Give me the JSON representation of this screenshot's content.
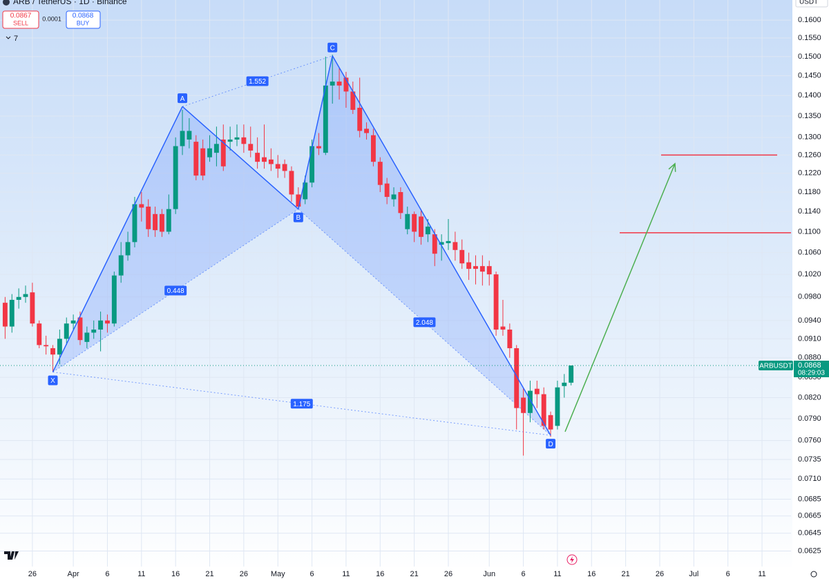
{
  "header": {
    "symbol": "ARB / TetherUS · 1D · Binance",
    "sell_price": "0.0867",
    "sell": "SELL",
    "spread": "0.0001",
    "buy_price": "0.0868",
    "buy": "BUY",
    "indicators": "7",
    "currency": "USDT"
  },
  "chart_data": {
    "type": "candlestick",
    "title": "ARB / TetherUS · 1D · Binance",
    "categories": [
      null,
      null,
      null,
      null,
      "26",
      null,
      null,
      null,
      null,
      null,
      "Apr",
      null,
      null,
      null,
      null,
      "6",
      null,
      null,
      null,
      null,
      "11",
      null,
      null,
      null,
      null,
      "16",
      null,
      null,
      null,
      null,
      "21",
      null,
      null,
      null,
      null,
      "26",
      null,
      null,
      null,
      null,
      "May",
      null,
      null,
      null,
      null,
      "6",
      null,
      null,
      null,
      null,
      "11",
      null,
      null,
      null,
      null,
      "16",
      null,
      null,
      null,
      null,
      "21",
      null,
      null,
      null,
      null,
      "26",
      null,
      null,
      null,
      null,
      null,
      "Jun",
      null,
      null,
      null,
      null,
      "6",
      null,
      null,
      null,
      null,
      "11",
      null,
      null,
      null,
      null,
      "16",
      null,
      null,
      null,
      null,
      "21",
      null,
      null,
      null,
      null,
      "26",
      null,
      null,
      null,
      null,
      "Jul",
      null,
      null,
      null,
      null,
      "6",
      null,
      null,
      null,
      null,
      "11",
      null,
      null,
      null,
      null
    ],
    "open": [
      0.097,
      0.093,
      0.0975,
      0.098,
      0.0988,
      0.0935,
      0.09,
      0.0895,
      0.0885,
      0.091,
      0.0935,
      0.0945,
      0.0905,
      0.092,
      0.0925,
      0.094,
      0.0935,
      0.1018,
      0.1055,
      0.108,
      0.1155,
      0.115,
      0.1135,
      0.1135,
      0.11,
      0.1145,
      0.128,
      0.1295,
      0.129,
      0.1275,
      0.1255,
      0.1265,
      0.1295,
      0.129,
      0.1295,
      0.13,
      0.1285,
      0.1265,
      0.1255,
      0.125,
      0.124,
      0.124,
      0.1225,
      0.1175,
      0.1165,
      0.12,
      0.128,
      0.1265,
      0.1425,
      0.1435,
      0.1445,
      0.141,
      0.137,
      0.132,
      0.1305,
      0.1245,
      0.1198,
      0.1165,
      0.118,
      0.1105,
      0.1135,
      0.113,
      0.1095,
      0.1095,
      0.1075,
      0.1078,
      0.108,
      0.1065,
      0.1042,
      0.1035,
      0.1035,
      0.1035,
      0.102,
      0.093,
      0.0925,
      0.0895,
      0.082,
      0.0798,
      0.0833,
      0.0825,
      0.0795,
      0.078,
      0.0837,
      0.0842,
      null,
      null,
      null,
      null,
      null,
      null,
      null,
      null,
      null,
      null,
      null,
      null,
      null,
      null,
      null,
      null,
      null,
      null,
      null,
      null,
      null,
      null,
      null,
      null,
      null,
      null,
      null,
      null,
      null,
      null,
      null,
      null
    ],
    "high": [
      0.098,
      0.0985,
      0.0995,
      0.1,
      0.1005,
      0.094,
      0.0915,
      0.09,
      0.0925,
      0.0945,
      0.095,
      0.0955,
      0.093,
      0.094,
      0.0955,
      0.095,
      0.1025,
      0.108,
      0.11,
      0.117,
      0.118,
      0.1165,
      0.115,
      0.1145,
      0.1175,
      0.13,
      0.1365,
      0.1345,
      0.1305,
      0.1295,
      0.1305,
      0.1325,
      0.133,
      0.1325,
      0.133,
      0.133,
      0.1325,
      0.13,
      0.133,
      0.1275,
      0.126,
      0.125,
      0.1235,
      0.119,
      0.1215,
      0.1295,
      0.131,
      0.15,
      0.1505,
      0.147,
      0.146,
      0.1435,
      0.1445,
      0.1335,
      0.132,
      0.1255,
      0.121,
      0.119,
      0.119,
      0.115,
      0.114,
      0.1145,
      0.1125,
      0.1105,
      0.1095,
      0.1125,
      0.11,
      0.1085,
      0.106,
      0.1055,
      0.1055,
      0.1045,
      0.1025,
      0.0975,
      0.0935,
      0.09,
      0.0835,
      0.0845,
      0.0845,
      0.0835,
      0.08,
      0.0845,
      0.0855,
      0.0868,
      null,
      null,
      null,
      null,
      null,
      null,
      null,
      null,
      null,
      null,
      null,
      null,
      null,
      null,
      null,
      null,
      null,
      null,
      null,
      null,
      null,
      null,
      null,
      null,
      null,
      null,
      null,
      null,
      null,
      null,
      null,
      null
    ],
    "low": [
      0.091,
      0.092,
      0.096,
      0.097,
      0.093,
      0.0895,
      0.0885,
      0.0858,
      0.087,
      0.09,
      0.0925,
      0.09,
      0.0895,
      0.091,
      0.089,
      0.092,
      0.093,
      0.1005,
      0.1045,
      0.107,
      0.112,
      0.109,
      0.109,
      0.109,
      0.1095,
      0.1135,
      0.126,
      0.1275,
      0.1205,
      0.1205,
      0.1245,
      0.1235,
      0.1225,
      0.127,
      0.128,
      0.1265,
      0.1255,
      0.123,
      0.123,
      0.1225,
      0.121,
      0.121,
      0.116,
      0.1145,
      0.1155,
      0.119,
      0.126,
      0.126,
      0.138,
      0.139,
      0.137,
      0.1355,
      0.13,
      0.1295,
      0.1235,
      0.118,
      0.1155,
      0.115,
      0.1125,
      0.1095,
      0.108,
      0.1075,
      0.108,
      0.1035,
      0.1045,
      0.1065,
      0.1045,
      0.103,
      0.101,
      0.1002,
      0.1,
      0.1,
      0.0915,
      0.0915,
      0.088,
      0.0775,
      0.074,
      0.0785,
      0.0805,
      0.0775,
      0.0765,
      0.0775,
      0.082,
      0.0838,
      null,
      null,
      null,
      null,
      null,
      null,
      null,
      null,
      null,
      null,
      null,
      null,
      null,
      null,
      null,
      null,
      null,
      null,
      null,
      null,
      null,
      null,
      null,
      null,
      null,
      null,
      null,
      null,
      null,
      null,
      null,
      null
    ],
    "close": [
      0.093,
      0.0975,
      0.098,
      0.0985,
      0.0935,
      0.09,
      0.0898,
      0.0885,
      0.091,
      0.0935,
      0.094,
      0.0908,
      0.092,
      0.0925,
      0.094,
      0.0935,
      0.1018,
      0.1055,
      0.108,
      0.1155,
      0.1148,
      0.1105,
      0.1103,
      0.11,
      0.1145,
      0.128,
      0.1315,
      0.1315,
      0.1215,
      0.1215,
      0.1275,
      0.1285,
      0.1235,
      0.1295,
      0.13,
      0.1285,
      0.127,
      0.1245,
      0.1245,
      0.124,
      0.123,
      0.1225,
      0.1175,
      0.115,
      0.12,
      0.128,
      0.1275,
      0.1425,
      0.1435,
      0.1425,
      0.141,
      0.1365,
      0.1315,
      0.131,
      0.1245,
      0.1195,
      0.117,
      0.1175,
      0.1137,
      0.1135,
      0.11,
      0.109,
      0.111,
      0.1058,
      0.108,
      0.1082,
      0.1065,
      0.104,
      0.103,
      0.103,
      0.1025,
      0.102,
      0.0925,
      0.0925,
      0.0895,
      0.0805,
      0.0798,
      0.083,
      0.0825,
      0.078,
      0.0775,
      0.0835,
      0.0842,
      0.0868,
      null,
      null,
      null,
      null,
      null,
      null,
      null,
      null,
      null,
      null,
      null,
      null,
      null,
      null,
      null,
      null,
      null,
      null,
      null,
      null,
      null,
      null,
      null,
      null,
      null,
      null,
      null,
      null,
      null,
      null,
      null,
      null
    ],
    "up_color": "#089981",
    "down_color": "#f23645",
    "log_scale": true,
    "grid": true,
    "ylim": [
      0.0608,
      0.1658
    ],
    "yticks": [
      {
        "value": 0.16,
        "label": "0.1600"
      },
      {
        "value": 0.155,
        "label": "0.1550"
      },
      {
        "value": 0.15,
        "label": "0.1500"
      },
      {
        "value": 0.145,
        "label": "0.1450"
      },
      {
        "value": 0.14,
        "label": "0.1400"
      },
      {
        "value": 0.135,
        "label": "0.1350"
      },
      {
        "value": 0.13,
        "label": "0.1300"
      },
      {
        "value": 0.126,
        "label": "0.1260"
      },
      {
        "value": 0.122,
        "label": "0.1220"
      },
      {
        "value": 0.118,
        "label": "0.1180"
      },
      {
        "value": 0.114,
        "label": "0.1140"
      },
      {
        "value": 0.11,
        "label": "0.1100"
      },
      {
        "value": 0.106,
        "label": "0.1060"
      },
      {
        "value": 0.102,
        "label": "0.1020"
      },
      {
        "value": 0.098,
        "label": "0.0980"
      },
      {
        "value": 0.094,
        "label": "0.0940"
      },
      {
        "value": 0.091,
        "label": "0.0910"
      },
      {
        "value": 0.088,
        "label": "0.0880"
      },
      {
        "value": 0.085,
        "label": "0.0850"
      },
      {
        "value": 0.082,
        "label": "0.0820"
      },
      {
        "value": 0.079,
        "label": "0.0790"
      },
      {
        "value": 0.076,
        "label": "0.0760"
      },
      {
        "value": 0.0735,
        "label": "0.0735"
      },
      {
        "value": 0.071,
        "label": "0.0710"
      },
      {
        "value": 0.0685,
        "label": "0.0685"
      },
      {
        "value": 0.0665,
        "label": "0.0665"
      },
      {
        "value": 0.0645,
        "label": "0.0645"
      },
      {
        "value": 0.0625,
        "label": "0.0625"
      }
    ],
    "last_price": {
      "symbol": "ARBUSDT",
      "value": 0.0868,
      "label": "0.0868",
      "countdown": "08:29:03",
      "color": "#089981"
    },
    "pattern": {
      "color": "#2962ff",
      "points": [
        {
          "label": "X",
          "index": 7,
          "value": 0.0858
        },
        {
          "label": "A",
          "index": 26,
          "value": 0.1373
        },
        {
          "label": "B",
          "index": 43,
          "value": 0.1145
        },
        {
          "label": "C",
          "index": 48,
          "value": 0.1502
        },
        {
          "label": "D",
          "index": 80,
          "value": 0.0767
        }
      ],
      "ratios": [
        0.448,
        1.552,
        2.048,
        1.175
      ]
    },
    "levels": {
      "color": "#f23645",
      "values": [
        0.126,
        0.1098
      ]
    },
    "projection": {
      "color": "#4caf50",
      "values": [
        0.0772,
        0.1241
      ]
    }
  }
}
